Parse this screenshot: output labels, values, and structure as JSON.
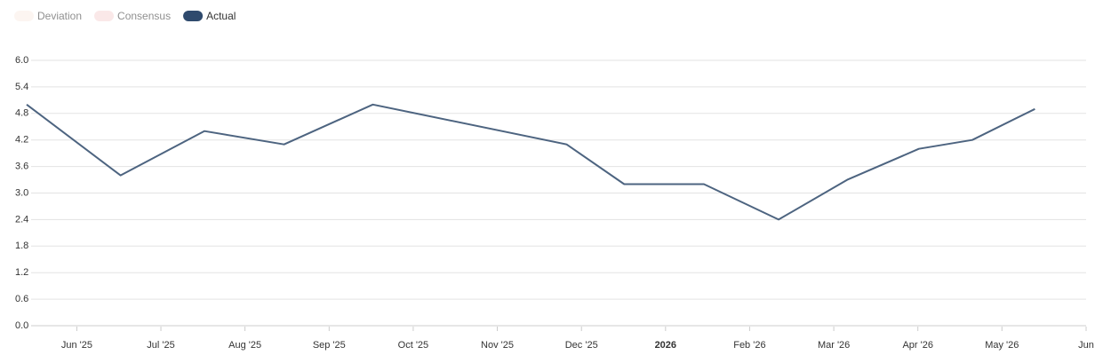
{
  "chart_data": {
    "type": "line",
    "legend": [
      {
        "name": "Deviation",
        "color": "#fbeee6",
        "faded": true
      },
      {
        "name": "Consensus",
        "color": "#f6d6d6",
        "faded": true
      },
      {
        "name": "Actual",
        "color": "#2f4a6d",
        "faded": false
      }
    ],
    "x": [
      2025.367,
      2025.46,
      2025.543,
      2025.622,
      2025.71,
      2025.902,
      2025.959,
      2026.038,
      2026.112,
      2026.18,
      2026.251,
      2026.304,
      2026.366
    ],
    "series": [
      {
        "name": "Actual",
        "color": "#4d6480",
        "values": [
          5.0,
          3.4,
          4.4,
          4.1,
          5.0,
          4.1,
          3.2,
          3.2,
          2.4,
          3.3,
          4.0,
          4.2,
          4.9
        ]
      }
    ],
    "xlim": [
      2025.367,
      2026.4167
    ],
    "xticks": [
      {
        "value": 2025.4167,
        "label": "Jun '25"
      },
      {
        "value": 2025.5,
        "label": "Jul '25"
      },
      {
        "value": 2025.5833,
        "label": "Aug '25"
      },
      {
        "value": 2025.6667,
        "label": "Sep '25"
      },
      {
        "value": 2025.75,
        "label": "Oct '25"
      },
      {
        "value": 2025.8333,
        "label": "Nov '25"
      },
      {
        "value": 2025.9167,
        "label": "Dec '25"
      },
      2026,
      {
        "value": 2026.0833,
        "label": "Feb '26"
      },
      {
        "value": 2026.1667,
        "label": "Mar '26"
      },
      {
        "value": 2026.25,
        "label": "Apr '26"
      },
      {
        "value": 2026.3333,
        "label": "May '26"
      },
      {
        "value": 2026.4167,
        "label": "Jun"
      }
    ],
    "ylim": [
      0,
      6
    ],
    "yticks": [
      {
        "value": 0,
        "label": "0.0"
      },
      {
        "value": 0.6,
        "label": "0.6"
      },
      {
        "value": 1.2,
        "label": "1.2"
      },
      {
        "value": 1.8,
        "label": "1.8"
      },
      {
        "value": 2.4,
        "label": "2.4"
      },
      {
        "value": 3,
        "label": "3.0"
      },
      {
        "value": 3.6,
        "label": "3.6"
      },
      {
        "value": 4.2,
        "label": "4.2"
      },
      {
        "value": 4.8,
        "label": "4.8"
      },
      {
        "value": 5.4,
        "label": "5.4"
      },
      {
        "value": 6,
        "label": "6.0"
      }
    ],
    "grid": true
  }
}
